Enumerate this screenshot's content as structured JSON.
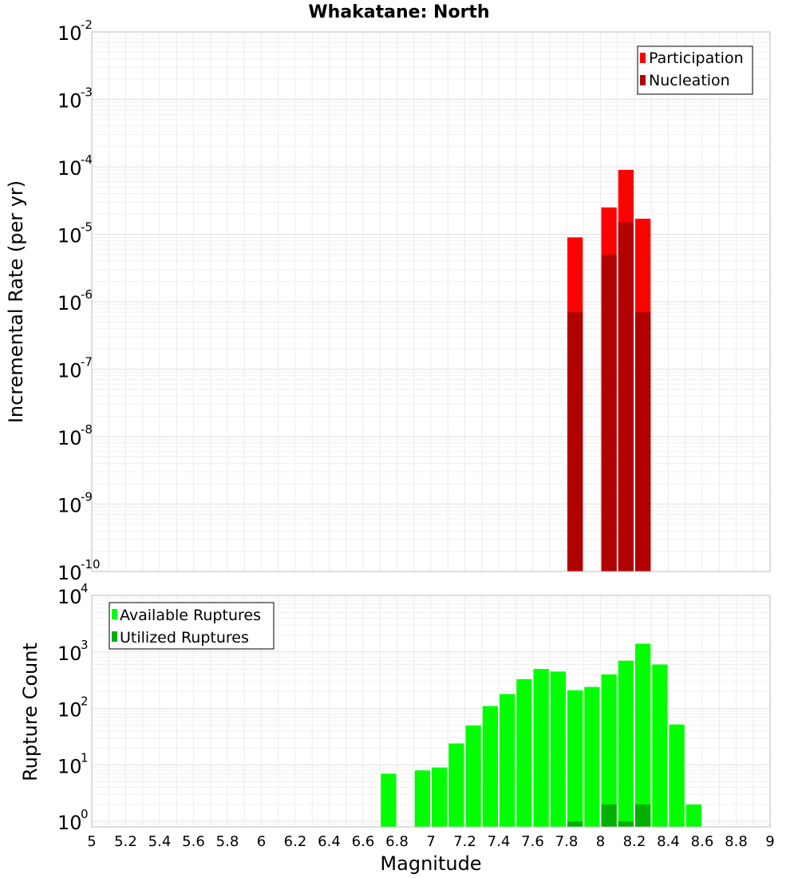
{
  "chart_data": [
    {
      "type": "bar",
      "title": "Whakatane: North",
      "ylabel": "Incremental Rate (per yr)",
      "xlabel": "",
      "yscale": "log",
      "ylim": [
        1e-10,
        0.01
      ],
      "xlim": [
        5,
        9
      ],
      "grid": true,
      "legend_position": "top-right",
      "ytick_labels": [
        {
          "value": 1e-10,
          "base": "10",
          "exp": "-10"
        },
        {
          "value": 1e-09,
          "base": "10",
          "exp": "-9"
        },
        {
          "value": 1e-08,
          "base": "10",
          "exp": "-8"
        },
        {
          "value": 1e-07,
          "base": "10",
          "exp": "-7"
        },
        {
          "value": 1e-06,
          "base": "10",
          "exp": "-6"
        },
        {
          "value": 1e-05,
          "base": "10",
          "exp": "-5"
        },
        {
          "value": 0.0001,
          "base": "10",
          "exp": "-4"
        },
        {
          "value": 0.001,
          "base": "10",
          "exp": "-3"
        },
        {
          "value": 0.01,
          "base": "10",
          "exp": "-2"
        }
      ],
      "bar_width": 0.1,
      "series": [
        {
          "name": "Participation",
          "color": "#ff0000",
          "x": [
            7.85,
            8.05,
            8.15,
            8.25
          ],
          "values": [
            9e-06,
            2.5e-05,
            9e-05,
            1.7e-05
          ]
        },
        {
          "name": "Nucleation",
          "color": "#b00000",
          "x": [
            7.85,
            8.05,
            8.15,
            8.25
          ],
          "values": [
            7e-07,
            5e-06,
            1.5e-05,
            7e-07
          ]
        }
      ]
    },
    {
      "type": "bar",
      "title": "",
      "ylabel": "Rupture Count",
      "xlabel": "Magnitude",
      "yscale": "log",
      "ylim": [
        0.8,
        10000
      ],
      "xlim": [
        5,
        9
      ],
      "grid": true,
      "legend_position": "top-left",
      "ytick_labels": [
        {
          "value": 1,
          "base": "10",
          "exp": "0"
        },
        {
          "value": 10,
          "base": "10",
          "exp": "1"
        },
        {
          "value": 100,
          "base": "10",
          "exp": "2"
        },
        {
          "value": 1000,
          "base": "10",
          "exp": "3"
        },
        {
          "value": 10000,
          "base": "10",
          "exp": "4"
        }
      ],
      "xtick_labels": [
        "5",
        "5.2",
        "5.4",
        "5.6",
        "5.8",
        "6",
        "6.2",
        "6.4",
        "6.6",
        "6.8",
        "7",
        "7.2",
        "7.4",
        "7.6",
        "7.8",
        "8",
        "8.2",
        "8.4",
        "8.6",
        "8.8",
        "9"
      ],
      "xtick_values": [
        5,
        5.2,
        5.4,
        5.6,
        5.8,
        6,
        6.2,
        6.4,
        6.6,
        6.8,
        7,
        7.2,
        7.4,
        7.6,
        7.8,
        8,
        8.2,
        8.4,
        8.6,
        8.8,
        9
      ],
      "bar_width": 0.1,
      "series": [
        {
          "name": "Available Ruptures",
          "color": "#00ff00",
          "x": [
            6.75,
            6.95,
            7.05,
            7.15,
            7.25,
            7.35,
            7.45,
            7.55,
            7.65,
            7.75,
            7.85,
            7.95,
            8.05,
            8.15,
            8.25,
            8.35,
            8.45,
            8.55
          ],
          "values": [
            7,
            8,
            9,
            24,
            50,
            110,
            180,
            330,
            500,
            450,
            210,
            240,
            400,
            700,
            1400,
            600,
            52,
            2
          ]
        },
        {
          "name": "Utilized Ruptures",
          "color": "#00b000",
          "x": [
            7.85,
            8.05,
            8.15,
            8.25
          ],
          "values": [
            1,
            2,
            1,
            2
          ]
        }
      ]
    }
  ]
}
